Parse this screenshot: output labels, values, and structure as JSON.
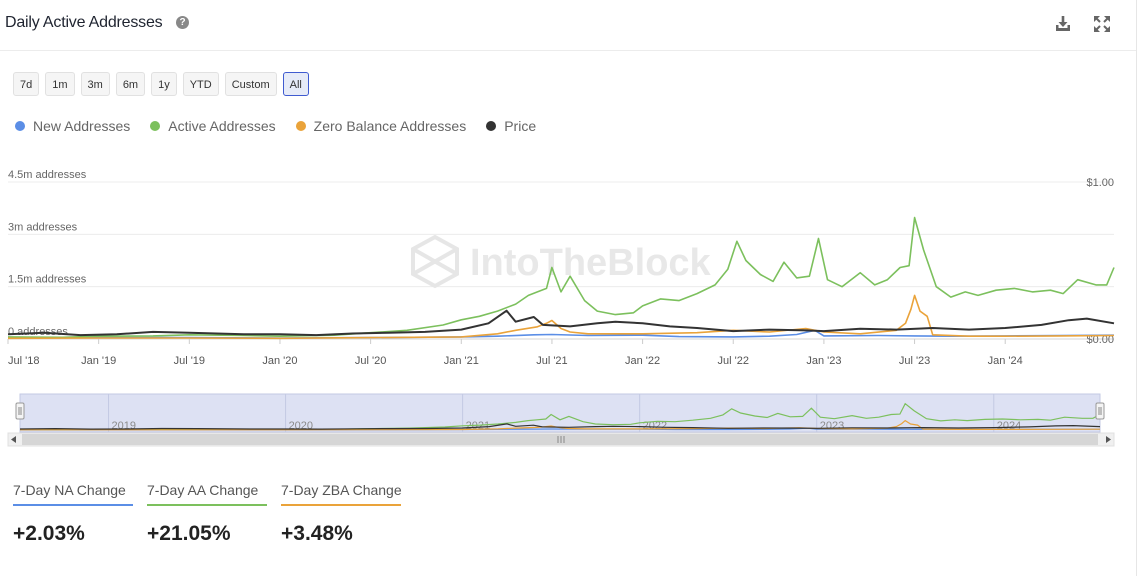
{
  "header": {
    "title": "Daily Active Addresses",
    "help_icon": "question-icon"
  },
  "toolbar": {
    "download_icon": "download-icon",
    "expand_icon": "expand-icon"
  },
  "ranges": [
    {
      "label": "7d",
      "active": false
    },
    {
      "label": "1m",
      "active": false
    },
    {
      "label": "3m",
      "active": false
    },
    {
      "label": "6m",
      "active": false
    },
    {
      "label": "1y",
      "active": false
    },
    {
      "label": "YTD",
      "active": false
    },
    {
      "label": "Custom",
      "active": false
    },
    {
      "label": "All",
      "active": true
    }
  ],
  "watermark": "IntoTheBlock",
  "stats": [
    {
      "label": "7-Day NA Change",
      "value": "+2.03%",
      "color": "#5b8ee6"
    },
    {
      "label": "7-Day AA Change",
      "value": "+21.05%",
      "color": "#7cc05d"
    },
    {
      "label": "7-Day ZBA Change",
      "value": "+3.48%",
      "color": "#eaa33a"
    }
  ],
  "chart_data": {
    "type": "line",
    "title": "Daily Active Addresses",
    "y_left": {
      "unit": "addresses",
      "range": [
        0,
        4500000
      ],
      "ticks": [
        "0 addresses",
        "1.5m addresses",
        "3m addresses",
        "4.5m addresses"
      ],
      "tick_values": [
        0,
        1500000,
        3000000,
        4500000
      ]
    },
    "y_right": {
      "unit": "USD",
      "range": [
        0,
        1.0
      ],
      "ticks": [
        "$0.00",
        "$1.00"
      ],
      "tick_values": [
        0,
        1.0
      ]
    },
    "x_range": [
      2018.5,
      2024.6
    ],
    "x_ticks": [
      {
        "label": "Jul '18",
        "t": 2018.5
      },
      {
        "label": "Jan '19",
        "t": 2019.0
      },
      {
        "label": "Jul '19",
        "t": 2019.5
      },
      {
        "label": "Jan '20",
        "t": 2020.0
      },
      {
        "label": "Jul '20",
        "t": 2020.5
      },
      {
        "label": "Jan '21",
        "t": 2021.0
      },
      {
        "label": "Jul '21",
        "t": 2021.5
      },
      {
        "label": "Jan '22",
        "t": 2022.0
      },
      {
        "label": "Jul '22",
        "t": 2022.5
      },
      {
        "label": "Jan '23",
        "t": 2023.0
      },
      {
        "label": "Jul '23",
        "t": 2023.5
      },
      {
        "label": "Jan '24",
        "t": 2024.0
      }
    ],
    "navigator_years": [
      {
        "label": "2019",
        "t": 2019.0
      },
      {
        "label": "2020",
        "t": 2020.0
      },
      {
        "label": "2021",
        "t": 2021.0
      },
      {
        "label": "2022",
        "t": 2022.0
      },
      {
        "label": "2023",
        "t": 2023.0
      },
      {
        "label": "2024",
        "t": 2024.0
      }
    ],
    "series": [
      {
        "name": "New Addresses",
        "color": "#5b8ee6",
        "axis": "left",
        "points": [
          [
            2018.5,
            30000
          ],
          [
            2019.0,
            40000
          ],
          [
            2019.5,
            40000
          ],
          [
            2020.0,
            30000
          ],
          [
            2020.5,
            40000
          ],
          [
            2021.0,
            60000
          ],
          [
            2021.2,
            80000
          ],
          [
            2021.4,
            120000
          ],
          [
            2021.5,
            130000
          ],
          [
            2021.7,
            100000
          ],
          [
            2022.0,
            110000
          ],
          [
            2022.2,
            70000
          ],
          [
            2022.5,
            60000
          ],
          [
            2022.7,
            80000
          ],
          [
            2022.85,
            130000
          ],
          [
            2022.95,
            250000
          ],
          [
            2023.0,
            90000
          ],
          [
            2023.3,
            100000
          ],
          [
            2023.5,
            90000
          ],
          [
            2023.7,
            80000
          ],
          [
            2024.0,
            90000
          ],
          [
            2024.3,
            100000
          ],
          [
            2024.6,
            110000
          ]
        ]
      },
      {
        "name": "Active Addresses",
        "color": "#7cc05d",
        "axis": "left",
        "points": [
          [
            2018.5,
            60000
          ],
          [
            2018.8,
            50000
          ],
          [
            2019.0,
            80000
          ],
          [
            2019.3,
            90000
          ],
          [
            2019.5,
            120000
          ],
          [
            2019.8,
            100000
          ],
          [
            2020.0,
            80000
          ],
          [
            2020.3,
            110000
          ],
          [
            2020.5,
            180000
          ],
          [
            2020.7,
            250000
          ],
          [
            2020.9,
            400000
          ],
          [
            2021.0,
            550000
          ],
          [
            2021.1,
            650000
          ],
          [
            2021.2,
            800000
          ],
          [
            2021.3,
            1000000
          ],
          [
            2021.37,
            1250000
          ],
          [
            2021.42,
            1350000
          ],
          [
            2021.47,
            1450000
          ],
          [
            2021.5,
            2050000
          ],
          [
            2021.55,
            1350000
          ],
          [
            2021.6,
            1800000
          ],
          [
            2021.68,
            1100000
          ],
          [
            2021.75,
            800000
          ],
          [
            2021.85,
            700000
          ],
          [
            2021.95,
            750000
          ],
          [
            2022.0,
            950000
          ],
          [
            2022.1,
            1150000
          ],
          [
            2022.2,
            1100000
          ],
          [
            2022.3,
            1300000
          ],
          [
            2022.4,
            1550000
          ],
          [
            2022.47,
            2000000
          ],
          [
            2022.52,
            2800000
          ],
          [
            2022.57,
            2250000
          ],
          [
            2022.65,
            1850000
          ],
          [
            2022.72,
            1650000
          ],
          [
            2022.78,
            2200000
          ],
          [
            2022.85,
            1750000
          ],
          [
            2022.92,
            1800000
          ],
          [
            2022.97,
            2880000
          ],
          [
            2023.02,
            1700000
          ],
          [
            2023.1,
            1500000
          ],
          [
            2023.2,
            1900000
          ],
          [
            2023.28,
            1550000
          ],
          [
            2023.35,
            1700000
          ],
          [
            2023.42,
            2050000
          ],
          [
            2023.47,
            2100000
          ],
          [
            2023.5,
            3480000
          ],
          [
            2023.55,
            2550000
          ],
          [
            2023.62,
            1500000
          ],
          [
            2023.7,
            1200000
          ],
          [
            2023.78,
            1350000
          ],
          [
            2023.85,
            1250000
          ],
          [
            2023.95,
            1400000
          ],
          [
            2024.05,
            1450000
          ],
          [
            2024.15,
            1350000
          ],
          [
            2024.25,
            1400000
          ],
          [
            2024.32,
            1300000
          ],
          [
            2024.4,
            1700000
          ],
          [
            2024.5,
            1550000
          ],
          [
            2024.56,
            1550000
          ],
          [
            2024.6,
            2050000
          ]
        ]
      },
      {
        "name": "Zero Balance Addresses",
        "color": "#eaa33a",
        "axis": "left",
        "points": [
          [
            2018.5,
            20000
          ],
          [
            2019.0,
            30000
          ],
          [
            2019.5,
            30000
          ],
          [
            2020.0,
            20000
          ],
          [
            2020.5,
            40000
          ],
          [
            2021.0,
            60000
          ],
          [
            2021.2,
            150000
          ],
          [
            2021.3,
            250000
          ],
          [
            2021.42,
            350000
          ],
          [
            2021.47,
            450000
          ],
          [
            2021.5,
            530000
          ],
          [
            2021.55,
            300000
          ],
          [
            2021.6,
            200000
          ],
          [
            2021.7,
            150000
          ],
          [
            2022.0,
            150000
          ],
          [
            2022.3,
            180000
          ],
          [
            2022.5,
            250000
          ],
          [
            2022.7,
            200000
          ],
          [
            2022.9,
            300000
          ],
          [
            2023.0,
            200000
          ],
          [
            2023.2,
            150000
          ],
          [
            2023.4,
            250000
          ],
          [
            2023.45,
            450000
          ],
          [
            2023.48,
            850000
          ],
          [
            2023.5,
            1250000
          ],
          [
            2023.53,
            800000
          ],
          [
            2023.57,
            650000
          ],
          [
            2023.6,
            120000
          ],
          [
            2023.8,
            80000
          ],
          [
            2024.0,
            80000
          ],
          [
            2024.3,
            90000
          ],
          [
            2024.6,
            100000
          ]
        ]
      },
      {
        "name": "Price",
        "color": "#333333",
        "axis": "right",
        "points": [
          [
            2018.5,
            0.03
          ],
          [
            2018.7,
            0.04
          ],
          [
            2018.9,
            0.025
          ],
          [
            2019.1,
            0.03
          ],
          [
            2019.3,
            0.045
          ],
          [
            2019.5,
            0.04
          ],
          [
            2019.8,
            0.03
          ],
          [
            2020.0,
            0.03
          ],
          [
            2020.2,
            0.025
          ],
          [
            2020.4,
            0.035
          ],
          [
            2020.6,
            0.04
          ],
          [
            2020.8,
            0.045
          ],
          [
            2021.0,
            0.06
          ],
          [
            2021.15,
            0.1
          ],
          [
            2021.25,
            0.18
          ],
          [
            2021.3,
            0.11
          ],
          [
            2021.4,
            0.14
          ],
          [
            2021.45,
            0.09
          ],
          [
            2021.6,
            0.08
          ],
          [
            2021.75,
            0.1
          ],
          [
            2021.85,
            0.11
          ],
          [
            2022.0,
            0.1
          ],
          [
            2022.15,
            0.08
          ],
          [
            2022.3,
            0.07
          ],
          [
            2022.5,
            0.05
          ],
          [
            2022.7,
            0.06
          ],
          [
            2022.9,
            0.055
          ],
          [
            2023.0,
            0.05
          ],
          [
            2023.2,
            0.065
          ],
          [
            2023.4,
            0.06
          ],
          [
            2023.6,
            0.07
          ],
          [
            2023.8,
            0.06
          ],
          [
            2024.0,
            0.07
          ],
          [
            2024.2,
            0.09
          ],
          [
            2024.35,
            0.12
          ],
          [
            2024.45,
            0.13
          ],
          [
            2024.6,
            0.1
          ]
        ]
      }
    ]
  }
}
